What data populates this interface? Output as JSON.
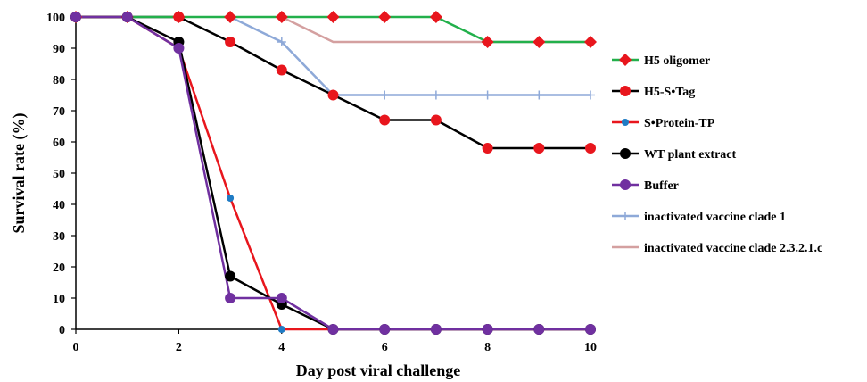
{
  "chart_data": {
    "type": "line",
    "xlabel": "Day post viral challenge",
    "ylabel": "Survival rate (%)",
    "xlim": [
      0,
      10
    ],
    "ylim": [
      0,
      100
    ],
    "x_ticks": [
      0,
      2,
      4,
      6,
      8,
      10
    ],
    "y_ticks": [
      0,
      10,
      20,
      30,
      40,
      50,
      60,
      70,
      80,
      90,
      100
    ],
    "grid": false,
    "legend_placement": "right",
    "series": [
      {
        "name": "H5 oligomer",
        "color": "#22b04b",
        "marker": "diamond",
        "marker_color": "#e8161d",
        "x": [
          0,
          1,
          2,
          3,
          4,
          5,
          6,
          7,
          8,
          9,
          10
        ],
        "values": [
          100,
          100,
          100,
          100,
          100,
          100,
          100,
          100,
          92,
          92,
          92
        ]
      },
      {
        "name": "H5-S•Tag",
        "color": "#000000",
        "marker": "circle",
        "marker_color": "#e8161d",
        "x": [
          0,
          1,
          2,
          3,
          4,
          5,
          6,
          7,
          8,
          9,
          10
        ],
        "values": [
          100,
          100,
          100,
          92,
          83,
          75,
          67,
          67,
          58,
          58,
          58
        ]
      },
      {
        "name": "S•Protein-TP",
        "color": "#e8161d",
        "marker": "small-circle",
        "marker_color": "#1f7bc4",
        "x": [
          0,
          1,
          2,
          3,
          4,
          5,
          6,
          7,
          8,
          9,
          10
        ],
        "values": [
          100,
          100,
          90,
          42,
          0,
          0,
          0,
          0,
          0,
          0,
          0
        ]
      },
      {
        "name": "WT plant extract",
        "color": "#000000",
        "marker": "circle",
        "marker_color": "#000000",
        "x": [
          0,
          1,
          2,
          3,
          4,
          5,
          6,
          7,
          8,
          9,
          10
        ],
        "values": [
          100,
          100,
          92,
          17,
          8,
          0,
          0,
          0,
          0,
          0,
          0
        ]
      },
      {
        "name": "Buffer",
        "color": "#7030a0",
        "marker": "circle",
        "marker_color": "#7030a0",
        "x": [
          0,
          1,
          2,
          3,
          4,
          5,
          6,
          7,
          8,
          9,
          10
        ],
        "values": [
          100,
          100,
          90,
          10,
          10,
          0,
          0,
          0,
          0,
          0,
          0
        ]
      },
      {
        "name": "inactivated vaccine clade 1",
        "color": "#8ea9d8",
        "marker": "plus",
        "marker_color": "#8ea9d8",
        "x": [
          3,
          4,
          5,
          6,
          7,
          8,
          9,
          10
        ],
        "values": [
          100,
          92,
          75,
          75,
          75,
          75,
          75,
          75
        ]
      },
      {
        "name": "inactivated vaccine clade 2.3.2.1.c",
        "color": "#d4a0a0",
        "marker": "none",
        "marker_color": "#d4a0a0",
        "x": [
          4,
          5,
          6,
          7,
          8,
          9,
          10
        ],
        "values": [
          100,
          92,
          92,
          92,
          92,
          92,
          92
        ]
      }
    ]
  }
}
